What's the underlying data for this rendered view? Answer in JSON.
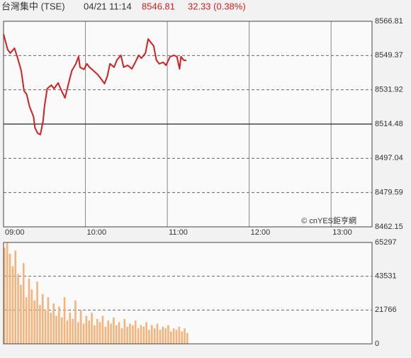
{
  "header": {
    "name": "台灣集中 (TSE)",
    "time": "04/21 11:14",
    "price": "8546.81",
    "change": "32.33 (0.38%)"
  },
  "chart_data": [
    {
      "type": "line",
      "annotation": "© cnYES鉅亨網",
      "color": "#d42020",
      "baseline": 8514.48,
      "grid": true,
      "x": [
        0,
        3,
        5,
        8,
        10,
        13,
        15,
        17,
        19,
        22,
        23,
        25,
        27,
        29,
        30,
        32,
        35,
        37,
        40,
        43,
        45,
        48,
        50,
        53,
        55,
        56,
        59,
        61,
        63,
        66,
        69,
        71,
        74,
        76,
        78,
        81,
        83,
        86,
        88,
        91,
        94,
        96,
        99,
        101,
        104,
        106,
        108,
        110,
        112,
        114,
        117,
        119,
        122,
        125,
        127,
        129,
        130,
        132,
        134
      ],
      "values": [
        8560.3,
        8552.4,
        8550.6,
        8553.1,
        8548.8,
        8541.6,
        8531.4,
        8529.6,
        8523.5,
        8518.1,
        8512.7,
        8509.8,
        8509.1,
        8516.3,
        8523.5,
        8532.5,
        8534.3,
        8532.5,
        8535.4,
        8530.7,
        8527.8,
        8536.1,
        8541.6,
        8545.2,
        8548.8,
        8543.4,
        8542.3,
        8545.2,
        8543.4,
        8541.6,
        8539.7,
        8537.9,
        8535.1,
        8538.7,
        8545.2,
        8543.4,
        8547.0,
        8549.5,
        8543.4,
        8544.4,
        8542.6,
        8545.2,
        8549.5,
        8548.0,
        8550.6,
        8557.8,
        8556.0,
        8554.2,
        8547.0,
        8545.2,
        8545.9,
        8544.4,
        8548.8,
        8549.5,
        8548.8,
        8542.6,
        8548.8,
        8547.0,
        8546.81
      ],
      "xlim": [
        0,
        270
      ],
      "xticks": [
        {
          "value": 0,
          "label": "09:00"
        },
        {
          "value": 60,
          "label": "10:00"
        },
        {
          "value": 120,
          "label": "11:00"
        },
        {
          "value": 180,
          "label": "12:00"
        },
        {
          "value": 240,
          "label": "13:00"
        }
      ],
      "ylim": [
        8462.15,
        8566.81
      ],
      "yticks": [
        8462.15,
        8479.59,
        8497.04,
        8514.48,
        8531.92,
        8549.37,
        8566.81
      ]
    },
    {
      "type": "bar",
      "color": "#f5b27a",
      "grid": true,
      "x": [
        0,
        2,
        4,
        6,
        8,
        10,
        12,
        14,
        16,
        18,
        20,
        22,
        24,
        26,
        28,
        30,
        32,
        34,
        36,
        38,
        40,
        42,
        44,
        46,
        48,
        50,
        52,
        54,
        56,
        58,
        60,
        62,
        64,
        66,
        68,
        70,
        72,
        74,
        76,
        78,
        80,
        82,
        84,
        86,
        88,
        90,
        92,
        94,
        96,
        98,
        100,
        102,
        104,
        106,
        108,
        110,
        112,
        114,
        116,
        118,
        120,
        122,
        124,
        126,
        128,
        130,
        132,
        134
      ],
      "values": [
        62000,
        65000,
        58000,
        50000,
        60000,
        45000,
        38000,
        52000,
        30000,
        42000,
        35000,
        28000,
        40000,
        25000,
        32000,
        22000,
        30000,
        20000,
        26000,
        18000,
        24000,
        17000,
        30000,
        15000,
        20000,
        16000,
        28000,
        14000,
        22000,
        13000,
        18000,
        15000,
        20000,
        12000,
        16000,
        14000,
        18000,
        11000,
        15000,
        13000,
        17000,
        12000,
        14000,
        10000,
        16000,
        11000,
        13000,
        12000,
        15000,
        10000,
        12000,
        11000,
        14000,
        9000,
        12000,
        10000,
        13000,
        9000,
        11000,
        10000,
        12000,
        8000,
        10000,
        9000,
        11000,
        8000,
        10000,
        7000
      ],
      "xlim": [
        0,
        270
      ],
      "ylim": [
        0,
        65297
      ],
      "yticks": [
        0,
        21766,
        43531,
        65297
      ]
    }
  ]
}
